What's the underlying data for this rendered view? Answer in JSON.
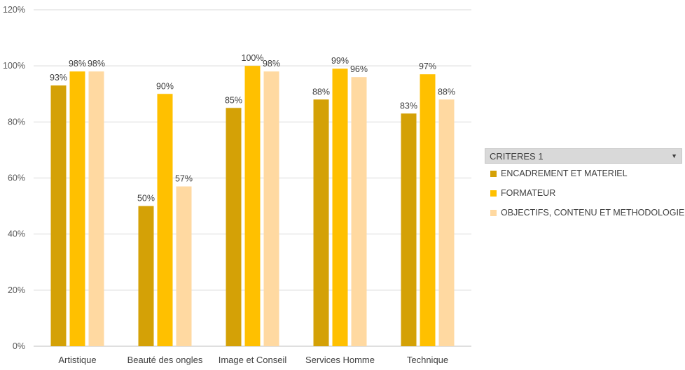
{
  "chart_data": {
    "type": "bar",
    "categories": [
      "Artistique",
      "Beauté des ongles",
      "Image et Conseil",
      "Services Homme",
      "Technique"
    ],
    "series": [
      {
        "name": "ENCADREMENT ET MATERIEL",
        "color": "#d4a106",
        "values": [
          93,
          50,
          85,
          88,
          83
        ],
        "labels": [
          "93%",
          "50%",
          "85%",
          "88%",
          "83%"
        ]
      },
      {
        "name": "FORMATEUR",
        "color": "#ffc000",
        "values": [
          98,
          90,
          100,
          99,
          97
        ],
        "labels": [
          "98%",
          "90%",
          "100%",
          "99%",
          "97%"
        ]
      },
      {
        "name": "OBJECTIFS, CONTENU ET METHODOLOGIE",
        "color": "#ffd9a1",
        "values": [
          98,
          57,
          98,
          96,
          88
        ],
        "labels": [
          "98%",
          "57%",
          "98%",
          "96%",
          "88%"
        ]
      }
    ],
    "y_ticks": [
      "0%",
      "20%",
      "40%",
      "60%",
      "80%",
      "100%",
      "120%"
    ],
    "ylim": [
      0,
      120
    ],
    "grid": true,
    "legend_position": "right"
  },
  "legend": {
    "title": "CRITERES 1",
    "dropdown_icon": "chevron-down-icon"
  }
}
